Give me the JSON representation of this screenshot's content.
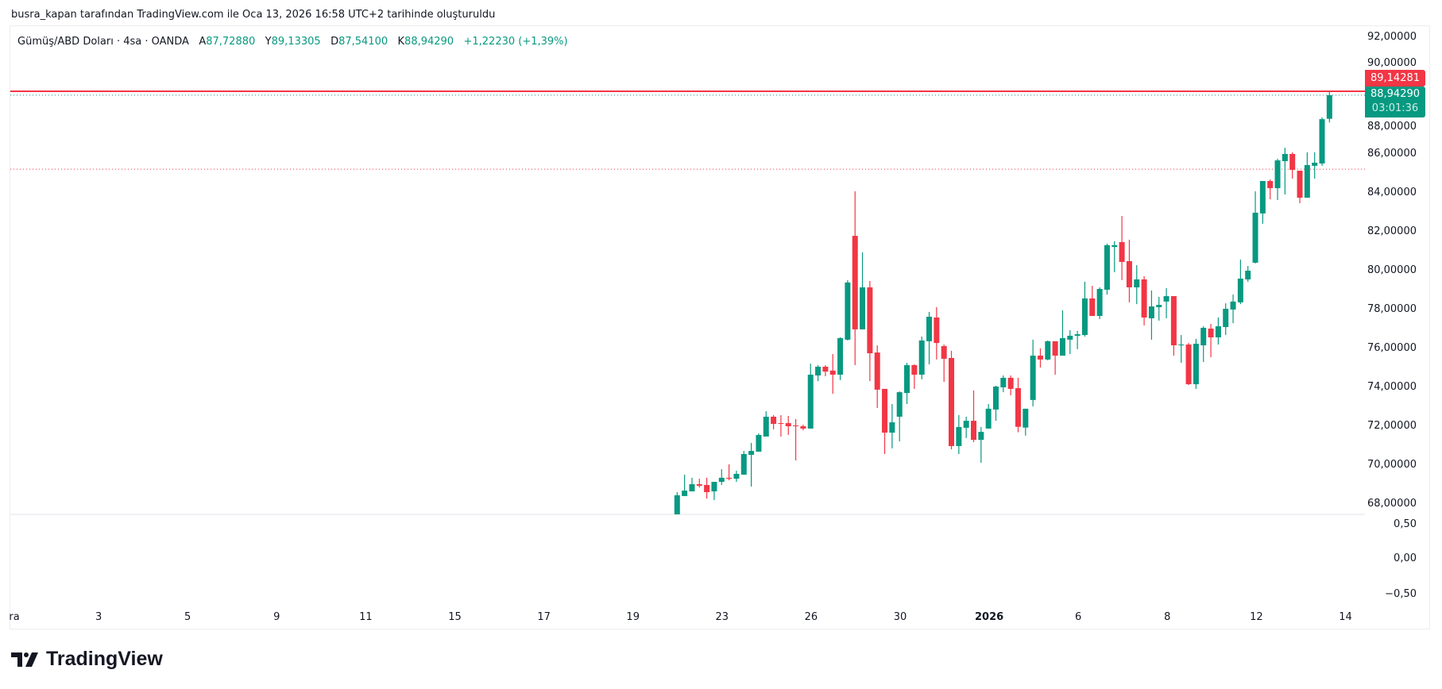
{
  "caption": "busra_kapan tarafından TradingView.com ile Oca 13, 2026 16:58 UTC+2 tarihinde oluşturuldu",
  "legend": {
    "symbol": "Gümüş/ABD Doları · 4sa · OANDA",
    "open_label": "A",
    "open": "87,72880",
    "high_label": "Y",
    "high": "89,13305",
    "low_label": "D",
    "low": "87,54100",
    "close_label": "K",
    "close": "88,94290",
    "change": "+1,22230 (+1,39%)"
  },
  "price_tags": {
    "line_price": "89,14281",
    "last_price": "88,94290",
    "countdown": "03:01:36"
  },
  "logo": {
    "text": "TradingView",
    "icon": "tradingview-logo-icon"
  },
  "colors": {
    "up": "#089981",
    "down": "#f23645",
    "text": "#131722",
    "grid_border": "#e0e3eb"
  },
  "chart_data": {
    "type": "candlestick",
    "ylim": [
      68,
      92
    ],
    "y_ticks": [
      "92,00000",
      "90,00000",
      "88,00000",
      "86,00000",
      "84,00000",
      "82,00000",
      "80,00000",
      "78,00000",
      "76,00000",
      "74,00000",
      "72,00000",
      "70,00000",
      "68,00000"
    ],
    "y_tick_values": [
      92,
      90,
      88,
      86,
      84,
      82,
      80,
      78,
      76,
      74,
      72,
      70,
      68
    ],
    "lower_pane_ticks": [
      "0,50",
      "0,00",
      "−0,50"
    ],
    "x_ticks": [
      "ra",
      "3",
      "5",
      "9",
      "11",
      "15",
      "17",
      "19",
      "23",
      "26",
      "30",
      "2026",
      "6",
      "8",
      "12",
      "14"
    ],
    "x_tick_bold": "2026",
    "lines": [
      {
        "kind": "solid",
        "price": 89.14281,
        "color": "#f23645"
      },
      {
        "kind": "dotted",
        "price": 88.9429,
        "color": "#089981"
      },
      {
        "kind": "dotted",
        "price": 85.14,
        "color": "#f23645"
      }
    ],
    "candles_ohlc": [
      [
        67.3,
        68.53,
        67.1,
        68.37
      ],
      [
        68.33,
        69.43,
        68.33,
        68.61
      ],
      [
        68.57,
        69.27,
        68.57,
        68.94
      ],
      [
        68.94,
        69.22,
        68.77,
        68.86
      ],
      [
        68.9,
        69.27,
        68.2,
        68.53
      ],
      [
        68.57,
        69.06,
        68.12,
        69.06
      ],
      [
        69.06,
        69.71,
        68.9,
        69.27
      ],
      [
        69.27,
        69.96,
        69.14,
        69.22
      ],
      [
        69.22,
        69.63,
        69.06,
        69.47
      ],
      [
        69.43,
        70.65,
        69.43,
        70.49
      ],
      [
        70.45,
        71.06,
        68.82,
        70.65
      ],
      [
        70.61,
        71.55,
        70.61,
        71.47
      ],
      [
        71.39,
        72.69,
        71.39,
        72.41
      ],
      [
        72.41,
        72.49,
        71.76,
        72.04
      ],
      [
        72.08,
        72.49,
        71.39,
        72.04
      ],
      [
        72.08,
        72.45,
        71.47,
        71.92
      ],
      [
        71.96,
        72.29,
        70.16,
        71.92
      ],
      [
        71.92,
        72.0,
        71.71,
        71.8
      ],
      [
        71.8,
        75.14,
        71.8,
        74.57
      ],
      [
        74.53,
        75.06,
        74.24,
        74.98
      ],
      [
        74.98,
        75.06,
        74.49,
        74.73
      ],
      [
        74.78,
        75.63,
        73.59,
        74.57
      ],
      [
        74.57,
        76.5,
        74.29,
        76.45
      ],
      [
        76.37,
        79.43,
        76.33,
        79.31
      ],
      [
        81.71,
        84.0,
        75.06,
        76.9
      ],
      [
        76.9,
        80.86,
        76.9,
        79.06
      ],
      [
        79.06,
        79.39,
        74.24,
        75.67
      ],
      [
        75.71,
        76.08,
        72.86,
        73.8
      ],
      [
        73.84,
        73.84,
        70.49,
        71.59
      ],
      [
        71.59,
        73.06,
        70.78,
        72.12
      ],
      [
        72.41,
        73.71,
        71.14,
        73.67
      ],
      [
        73.63,
        75.18,
        73.06,
        75.06
      ],
      [
        75.06,
        75.1,
        73.84,
        74.57
      ],
      [
        74.57,
        76.53,
        74.33,
        76.33
      ],
      [
        76.29,
        77.8,
        75.1,
        77.55
      ],
      [
        77.51,
        78.04,
        75.35,
        76.2
      ],
      [
        76.04,
        76.12,
        74.2,
        75.39
      ],
      [
        75.43,
        75.8,
        70.73,
        70.9
      ],
      [
        70.9,
        72.49,
        70.49,
        71.88
      ],
      [
        71.84,
        72.41,
        71.31,
        72.2
      ],
      [
        72.2,
        73.76,
        71.1,
        71.22
      ],
      [
        71.22,
        71.88,
        70.04,
        71.63
      ],
      [
        71.8,
        73.06,
        71.8,
        72.82
      ],
      [
        72.78,
        74.0,
        72.2,
        73.96
      ],
      [
        73.92,
        74.53,
        73.67,
        74.41
      ],
      [
        74.41,
        74.53,
        73.51,
        73.84
      ],
      [
        73.88,
        74.41,
        71.61,
        71.89
      ],
      [
        71.85,
        72.82,
        71.44,
        72.82
      ],
      [
        73.27,
        76.37,
        72.94,
        75.55
      ],
      [
        75.55,
        75.92,
        74.94,
        75.35
      ],
      [
        75.35,
        76.33,
        75.31,
        76.29
      ],
      [
        76.29,
        76.29,
        74.57,
        75.55
      ],
      [
        75.55,
        77.88,
        75.55,
        76.45
      ],
      [
        76.37,
        76.86,
        75.63,
        76.57
      ],
      [
        76.57,
        76.82,
        75.88,
        76.65
      ],
      [
        76.61,
        79.35,
        76.53,
        78.49
      ],
      [
        78.49,
        79.14,
        77.59,
        77.59
      ],
      [
        77.59,
        79.06,
        77.43,
        78.98
      ],
      [
        78.94,
        81.31,
        78.69,
        81.23
      ],
      [
        81.14,
        81.43,
        79.84,
        81.23
      ],
      [
        81.39,
        82.73,
        79.43,
        80.37
      ],
      [
        80.41,
        81.51,
        78.29,
        79.06
      ],
      [
        79.06,
        80.2,
        78.2,
        79.47
      ],
      [
        79.47,
        79.63,
        77.1,
        77.51
      ],
      [
        77.47,
        78.9,
        76.37,
        78.08
      ],
      [
        78.04,
        78.57,
        77.35,
        78.16
      ],
      [
        78.33,
        79.02,
        77.47,
        78.61
      ],
      [
        78.61,
        78.61,
        75.55,
        76.08
      ],
      [
        76.08,
        76.61,
        75.18,
        76.12
      ],
      [
        76.12,
        76.2,
        74.04,
        74.08
      ],
      [
        74.08,
        76.41,
        73.84,
        76.16
      ],
      [
        76.08,
        77.06,
        75.22,
        76.98
      ],
      [
        76.94,
        77.18,
        75.47,
        76.49
      ],
      [
        76.49,
        77.51,
        76.12,
        77.06
      ],
      [
        77.02,
        78.24,
        76.61,
        77.96
      ],
      [
        77.92,
        78.69,
        77.22,
        78.33
      ],
      [
        78.29,
        80.49,
        78.2,
        79.51
      ],
      [
        79.47,
        80.16,
        79.35,
        79.92
      ],
      [
        80.33,
        84.0,
        80.29,
        82.9
      ],
      [
        82.86,
        84.53,
        82.33,
        84.53
      ],
      [
        84.53,
        84.61,
        83.59,
        84.16
      ],
      [
        84.16,
        85.67,
        83.55,
        85.59
      ],
      [
        85.55,
        86.24,
        83.84,
        85.92
      ],
      [
        85.92,
        86.0,
        84.65,
        85.1
      ],
      [
        85.06,
        85.06,
        83.39,
        83.67
      ],
      [
        83.67,
        86.0,
        83.67,
        85.35
      ],
      [
        85.31,
        86.0,
        84.65,
        85.47
      ],
      [
        85.43,
        87.8,
        85.31,
        87.71
      ],
      [
        87.7288,
        89.13305,
        87.541,
        88.9429
      ]
    ]
  }
}
